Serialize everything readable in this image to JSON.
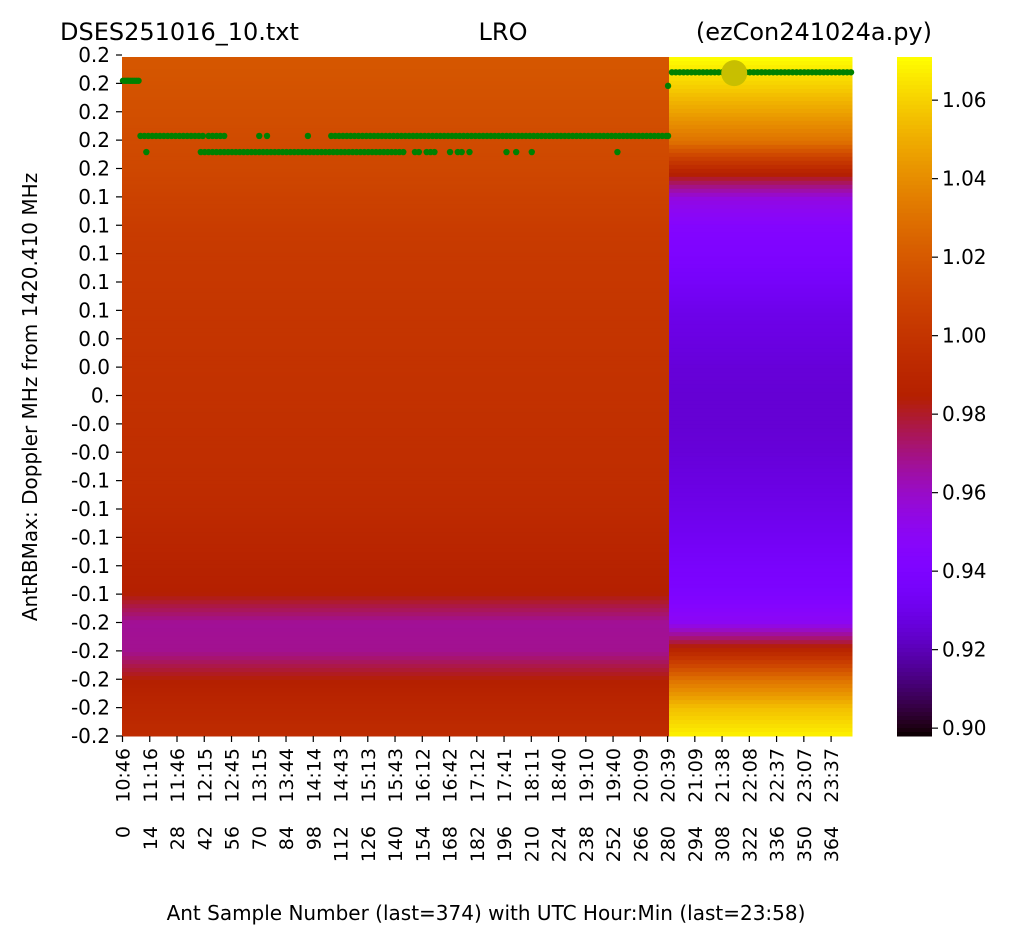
{
  "title": {
    "left": "DSES251016_10.txt",
    "center": "LRO",
    "right": "(ezCon241024a.py)"
  },
  "chart_data": {
    "type": "heatmap",
    "xlabel": "Ant Sample Number (last=374) with UTC Hour:Min (last=23:58)",
    "ylabel": "AntRBMax:  Doppler MHz from 1420.410 MHz",
    "x_range": [
      0,
      374
    ],
    "y_range": [
      0.2,
      -0.2
    ],
    "x_tick_numbers": [
      "0",
      "14",
      "28",
      "42",
      "56",
      "70",
      "84",
      "98",
      "112",
      "126",
      "140",
      "154",
      "168",
      "182",
      "196",
      "210",
      "224",
      "238",
      "252",
      "266",
      "280",
      "294",
      "308",
      "322",
      "336",
      "350",
      "364"
    ],
    "x_tick_times": [
      "10:46",
      "11:16",
      "11:46",
      "12:15",
      "12:45",
      "13:15",
      "13:44",
      "14:14",
      "14:43",
      "15:13",
      "15:43",
      "16:12",
      "16:42",
      "17:12",
      "17:41",
      "18:11",
      "18:40",
      "19:10",
      "19:40",
      "20:09",
      "20:39",
      "21:09",
      "21:38",
      "22:08",
      "22:37",
      "23:07",
      "23:37"
    ],
    "y_tick_labels": [
      "0.2",
      "0.2",
      "0.2",
      "0.2",
      "0.2",
      "0.1",
      "0.1",
      "0.1",
      "0.1",
      "0.1",
      "0.0",
      "0.0",
      "0.",
      "-0.0",
      "-0.0",
      "-0.1",
      "-0.1",
      "-0.1",
      "-0.1",
      "-0.1",
      "-0.2",
      "-0.2",
      "-0.2",
      "-0.2",
      "-0.2"
    ],
    "colormap": "gnuplot",
    "colorbar": {
      "range": [
        0.898,
        1.071
      ],
      "ticks": [
        "0.90",
        "0.92",
        "0.94",
        "0.96",
        "0.98",
        "1.00",
        "1.02",
        "1.04",
        "1.06"
      ]
    },
    "segments": [
      {
        "samples": [
          0,
          280
        ],
        "profile_top_to_bottom": [
          1.019,
          1.017,
          1.015,
          1.013,
          1.011,
          1.008,
          1.005,
          1.003,
          1.002,
          1.001,
          1.0,
          0.999,
          0.998,
          0.997,
          0.996,
          0.995,
          0.993,
          0.99,
          0.987,
          0.984,
          0.967,
          0.968,
          0.984,
          0.99,
          0.994
        ]
      },
      {
        "samples": [
          281,
          374
        ],
        "profile_top_to_bottom": [
          1.071,
          1.06,
          1.046,
          1.03,
          0.99,
          0.955,
          0.944,
          0.94,
          0.935,
          0.93,
          0.928,
          0.926,
          0.925,
          0.925,
          0.926,
          0.928,
          0.93,
          0.933,
          0.937,
          0.94,
          0.95,
          0.99,
          1.03,
          1.055,
          1.068
        ]
      }
    ],
    "max_points": {
      "color": "#008000",
      "groups": [
        {
          "y": 0.186,
          "samples": [
            0,
            1,
            2,
            3,
            4,
            5,
            6,
            7,
            8
          ]
        },
        {
          "y": 0.1535,
          "samples": [
            9,
            11,
            13,
            15,
            17,
            19,
            21,
            23,
            25,
            27,
            29,
            31,
            33,
            35,
            37,
            39,
            41,
            44,
            46,
            48,
            50,
            52,
            70,
            74,
            95,
            107,
            109,
            111,
            113,
            115,
            117,
            119,
            121,
            123,
            125,
            127,
            129,
            131,
            133,
            135,
            137,
            139,
            141,
            143,
            145,
            147,
            149,
            151,
            153,
            155,
            157,
            159,
            161,
            163,
            165,
            167,
            169,
            171,
            173,
            175,
            177,
            179,
            181,
            183,
            185,
            187,
            189,
            191,
            193,
            195,
            197,
            199,
            201,
            203,
            205,
            207,
            209,
            211,
            213,
            215,
            217,
            219,
            221,
            223,
            225,
            227,
            229,
            231,
            233,
            235,
            237,
            239,
            241,
            243,
            245,
            247,
            249,
            251,
            253,
            255,
            257,
            259,
            261,
            263,
            265,
            267,
            269,
            271,
            273,
            275,
            277,
            279,
            280
          ]
        },
        {
          "y": 0.144,
          "samples": [
            12,
            40,
            42,
            44,
            46,
            48,
            50,
            52,
            54,
            56,
            58,
            60,
            62,
            64,
            66,
            68,
            70,
            72,
            74,
            76,
            78,
            80,
            82,
            84,
            86,
            88,
            90,
            92,
            94,
            96,
            98,
            100,
            102,
            104,
            106,
            108,
            110,
            112,
            114,
            116,
            118,
            120,
            122,
            124,
            126,
            128,
            130,
            132,
            134,
            136,
            138,
            140,
            142,
            144,
            150,
            152,
            156,
            158,
            160,
            168,
            172,
            174,
            178,
            197,
            202,
            210,
            254
          ]
        },
        {
          "y": 0.183,
          "samples": [
            280
          ]
        },
        {
          "y": 0.191,
          "samples": [
            282,
            284,
            286,
            288,
            290,
            292,
            294,
            296,
            298,
            300,
            302,
            304,
            306,
            308,
            310,
            312,
            314,
            316,
            318,
            320,
            322,
            324,
            326,
            328,
            330,
            332,
            334,
            336,
            338,
            340,
            342,
            344,
            346,
            348,
            350,
            352,
            354,
            356,
            358,
            360,
            362,
            364,
            366,
            368,
            370,
            372,
            374
          ]
        }
      ]
    },
    "highlight_marker": {
      "sample": 314,
      "y": 0.1905,
      "color": "#c8bf00"
    },
    "grid": false
  }
}
